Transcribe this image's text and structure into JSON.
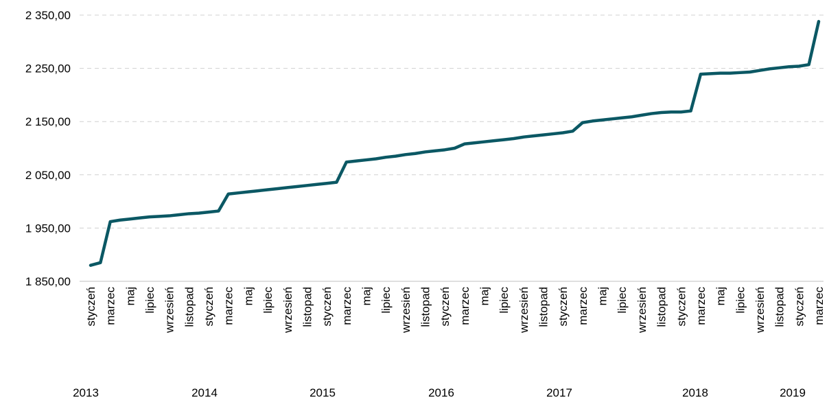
{
  "chart_data": {
    "type": "line",
    "categories": [
      "styczeń",
      null,
      "marzec",
      null,
      "maj",
      null,
      "lipiec",
      null,
      "wrzesień",
      null,
      "listopad",
      null,
      "styczeń",
      null,
      "marzec",
      null,
      "maj",
      null,
      "lipiec",
      null,
      "wrzesień",
      null,
      "listopad",
      null,
      "styczeń",
      null,
      "marzec",
      null,
      "maj",
      null,
      "lipiec",
      null,
      "wrzesień",
      null,
      "listopad",
      null,
      "styczeń",
      null,
      "marzec",
      null,
      "maj",
      null,
      "lipiec",
      null,
      "wrzesień",
      null,
      "listopad",
      null,
      "styczeń",
      null,
      "marzec",
      null,
      "maj",
      null,
      "lipiec",
      null,
      "wrzesień",
      null,
      "listopad",
      null,
      "styczeń",
      null,
      "marzec",
      null,
      "maj",
      null,
      "lipiec",
      null,
      "wrzesień",
      null,
      "listopad",
      null,
      "styczeń",
      null,
      "marzec"
    ],
    "year_labels": [
      "2013",
      "2014",
      "2015",
      "2016",
      "2017",
      "2018",
      "2019"
    ],
    "series": [
      {
        "name": "value",
        "color": "#0b5864",
        "values": [
          1880,
          1885,
          1962,
          1965,
          1967,
          1969,
          1971,
          1972,
          1973,
          1975,
          1977,
          1978,
          1980,
          1982,
          2014,
          2016,
          2018,
          2020,
          2022,
          2024,
          2026,
          2028,
          2030,
          2032,
          2034,
          2036,
          2074,
          2076,
          2078,
          2080,
          2083,
          2085,
          2088,
          2090,
          2093,
          2095,
          2097,
          2100,
          2108,
          2110,
          2112,
          2114,
          2116,
          2118,
          2121,
          2123,
          2125,
          2127,
          2129,
          2132,
          2148,
          2151,
          2153,
          2155,
          2157,
          2159,
          2162,
          2165,
          2167,
          2168,
          2168,
          2170,
          2239,
          2240,
          2241,
          2241,
          2242,
          2243,
          2246,
          2249,
          2251,
          2253,
          2254,
          2257,
          2338
        ]
      }
    ],
    "ylim": [
      1850,
      2350
    ],
    "yticks": [
      {
        "value": 1850,
        "label": "1 850,00"
      },
      {
        "value": 1950,
        "label": "1 950,00"
      },
      {
        "value": 2050,
        "label": "2 050,00"
      },
      {
        "value": 2150,
        "label": "2 150,00"
      },
      {
        "value": 2250,
        "label": "2 250,00"
      },
      {
        "value": 2350,
        "label": "2 350,00"
      }
    ],
    "grid": true
  }
}
